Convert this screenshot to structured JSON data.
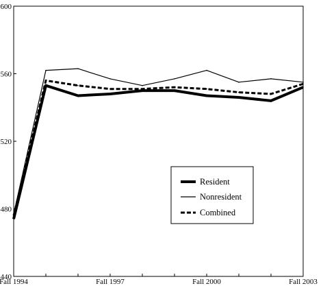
{
  "chart_data": {
    "type": "line",
    "x": [
      1994,
      1995,
      1996,
      1997,
      1998,
      1999,
      2000,
      2001,
      2002,
      2003
    ],
    "xticks": [
      1994,
      1997,
      2000,
      2003
    ],
    "xtick_labels": [
      "Fall 1994",
      "Fall 1997",
      "Fall 2000",
      "Fall 2003"
    ],
    "xlim": [
      1994,
      2003
    ],
    "ylim": [
      440,
      600
    ],
    "yticks": [
      440,
      480,
      520,
      560,
      600
    ],
    "ytick_labels": [
      "440",
      "480",
      "520",
      "560",
      "600"
    ],
    "grid": false,
    "legend_position": "lower-right",
    "series": [
      {
        "name": "Resident",
        "style": "thick-solid",
        "color": "#000000",
        "values": [
          474,
          553,
          547,
          548,
          550,
          550,
          547,
          546,
          544,
          552
        ]
      },
      {
        "name": "Nonresident",
        "style": "thin-solid",
        "color": "#000000",
        "values": [
          477,
          562,
          563,
          557,
          553,
          557,
          562,
          555,
          557,
          555
        ]
      },
      {
        "name": "Combined",
        "style": "dashed",
        "color": "#000000",
        "values": [
          476,
          556,
          553,
          551,
          551,
          552,
          551,
          549,
          548,
          554
        ]
      }
    ]
  }
}
